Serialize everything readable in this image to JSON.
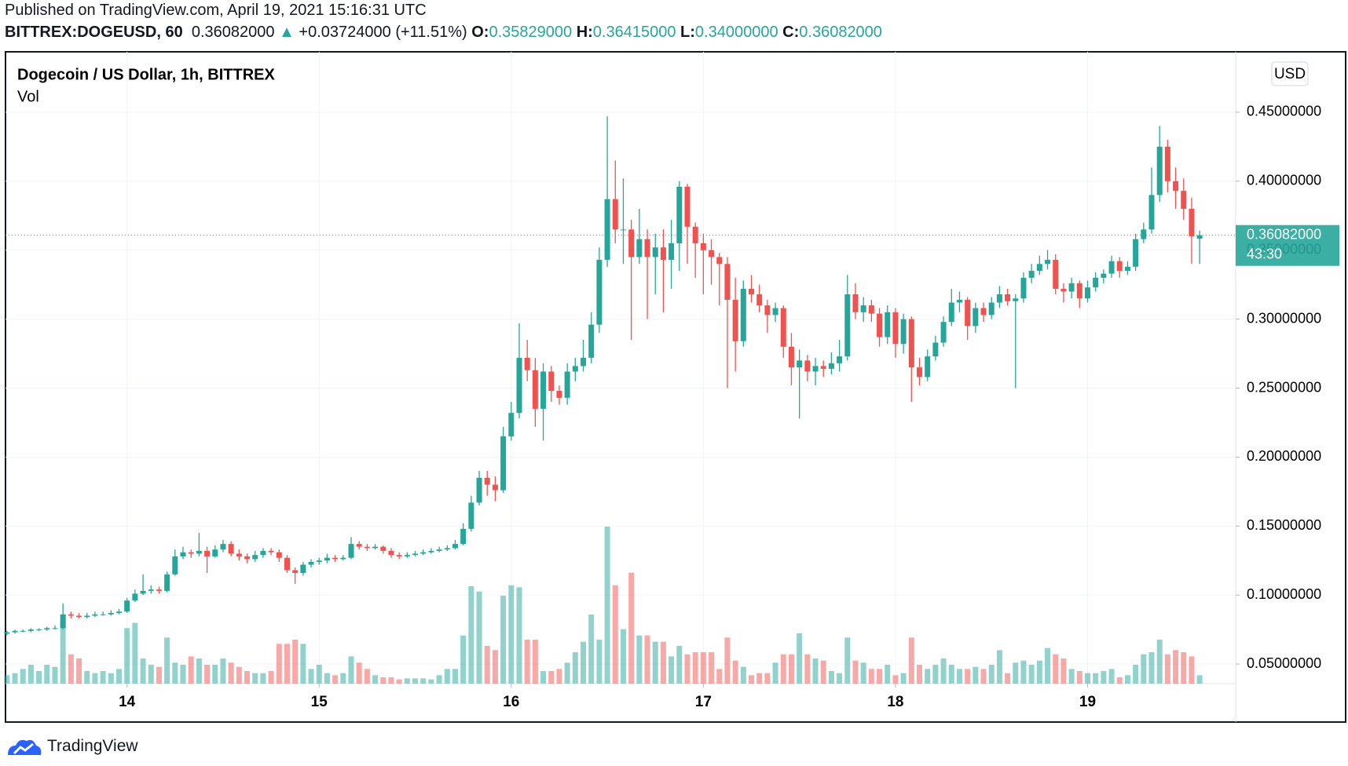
{
  "header": {
    "published": "Published on TradingView.com, April 19, 2021 15:16:31 UTC",
    "symbol": "BITTREX:DOGEUSD, 60",
    "last": "0.36082000",
    "change": "+0.03724000 (+11.51%)",
    "ohlc": [
      {
        "key": "O:",
        "value": "0.35829000"
      },
      {
        "key": "H:",
        "value": "0.36415000"
      },
      {
        "key": "L:",
        "value": "0.34000000"
      },
      {
        "key": "C:",
        "value": "0.36082000"
      }
    ]
  },
  "chart_data": {
    "type": "candlestick",
    "title": "Dogecoin / US Dollar, 1h, BITTREX",
    "indicator": "Vol",
    "currency": "USD",
    "last_price_label": "0.36082000",
    "countdown": "43:30",
    "up_color": "#26a69a",
    "down_color": "#ef5350",
    "grid": true,
    "ylim": [
      0.0358,
      0.4938
    ],
    "yticks": [
      {
        "value": 0.05,
        "label": "0.05000000"
      },
      {
        "value": 0.1,
        "label": "0.10000000"
      },
      {
        "value": 0.15,
        "label": "0.15000000"
      },
      {
        "value": 0.2,
        "label": "0.20000000"
      },
      {
        "value": 0.25,
        "label": "0.25000000"
      },
      {
        "value": 0.3,
        "label": "0.30000000"
      },
      {
        "value": 0.35,
        "label": "0.35000000"
      },
      {
        "value": 0.4,
        "label": "0.40000000"
      },
      {
        "value": 0.45,
        "label": "0.45000000"
      }
    ],
    "xlim": [
      -0.2,
      153.5
    ],
    "xticks": [
      {
        "value": 15,
        "label": "14"
      },
      {
        "value": 39,
        "label": "15"
      },
      {
        "value": 63,
        "label": "16"
      },
      {
        "value": 87,
        "label": "17"
      },
      {
        "value": 111,
        "label": "18"
      },
      {
        "value": 135,
        "label": "19"
      }
    ],
    "ohlc": [
      [
        0.072,
        0.074,
        0.071,
        0.073
      ],
      [
        0.073,
        0.075,
        0.072,
        0.074
      ],
      [
        0.074,
        0.075,
        0.073,
        0.074
      ],
      [
        0.074,
        0.076,
        0.073,
        0.075
      ],
      [
        0.075,
        0.076,
        0.074,
        0.075
      ],
      [
        0.075,
        0.077,
        0.074,
        0.076
      ],
      [
        0.076,
        0.078,
        0.075,
        0.076
      ],
      [
        0.076,
        0.094,
        0.075,
        0.086
      ],
      [
        0.086,
        0.088,
        0.083,
        0.085
      ],
      [
        0.085,
        0.087,
        0.083,
        0.084
      ],
      [
        0.084,
        0.087,
        0.083,
        0.085
      ],
      [
        0.085,
        0.088,
        0.084,
        0.086
      ],
      [
        0.086,
        0.088,
        0.085,
        0.086
      ],
      [
        0.086,
        0.089,
        0.085,
        0.087
      ],
      [
        0.087,
        0.09,
        0.086,
        0.088
      ],
      [
        0.088,
        0.098,
        0.087,
        0.096
      ],
      [
        0.096,
        0.104,
        0.095,
        0.101
      ],
      [
        0.101,
        0.115,
        0.1,
        0.103
      ],
      [
        0.103,
        0.107,
        0.101,
        0.104
      ],
      [
        0.104,
        0.106,
        0.101,
        0.103
      ],
      [
        0.103,
        0.117,
        0.102,
        0.115
      ],
      [
        0.115,
        0.133,
        0.114,
        0.128
      ],
      [
        0.128,
        0.135,
        0.126,
        0.131
      ],
      [
        0.131,
        0.133,
        0.127,
        0.13
      ],
      [
        0.13,
        0.145,
        0.128,
        0.132
      ],
      [
        0.132,
        0.135,
        0.116,
        0.128
      ],
      [
        0.128,
        0.136,
        0.127,
        0.133
      ],
      [
        0.133,
        0.14,
        0.131,
        0.137
      ],
      [
        0.137,
        0.139,
        0.128,
        0.13
      ],
      [
        0.13,
        0.133,
        0.125,
        0.128
      ],
      [
        0.128,
        0.13,
        0.123,
        0.126
      ],
      [
        0.126,
        0.132,
        0.124,
        0.129
      ],
      [
        0.129,
        0.134,
        0.127,
        0.132
      ],
      [
        0.132,
        0.134,
        0.129,
        0.131
      ],
      [
        0.131,
        0.133,
        0.124,
        0.127
      ],
      [
        0.127,
        0.129,
        0.116,
        0.118
      ],
      [
        0.118,
        0.12,
        0.108,
        0.116
      ],
      [
        0.116,
        0.124,
        0.114,
        0.122
      ],
      [
        0.122,
        0.126,
        0.12,
        0.124
      ],
      [
        0.124,
        0.127,
        0.122,
        0.125
      ],
      [
        0.125,
        0.13,
        0.123,
        0.127
      ],
      [
        0.127,
        0.129,
        0.124,
        0.126
      ],
      [
        0.126,
        0.129,
        0.125,
        0.127
      ],
      [
        0.127,
        0.142,
        0.126,
        0.137
      ],
      [
        0.137,
        0.139,
        0.133,
        0.135
      ],
      [
        0.135,
        0.137,
        0.132,
        0.134
      ],
      [
        0.134,
        0.137,
        0.133,
        0.135
      ],
      [
        0.135,
        0.136,
        0.13,
        0.132
      ],
      [
        0.132,
        0.134,
        0.127,
        0.129
      ],
      [
        0.129,
        0.131,
        0.126,
        0.128
      ],
      [
        0.128,
        0.131,
        0.127,
        0.129
      ],
      [
        0.129,
        0.132,
        0.128,
        0.13
      ],
      [
        0.13,
        0.133,
        0.129,
        0.131
      ],
      [
        0.131,
        0.134,
        0.13,
        0.132
      ],
      [
        0.132,
        0.135,
        0.131,
        0.133
      ],
      [
        0.133,
        0.136,
        0.132,
        0.134
      ],
      [
        0.134,
        0.14,
        0.133,
        0.137
      ],
      [
        0.137,
        0.152,
        0.136,
        0.148
      ],
      [
        0.148,
        0.172,
        0.146,
        0.167
      ],
      [
        0.167,
        0.19,
        0.165,
        0.185
      ],
      [
        0.185,
        0.19,
        0.172,
        0.18
      ],
      [
        0.18,
        0.186,
        0.168,
        0.176
      ],
      [
        0.176,
        0.222,
        0.174,
        0.215
      ],
      [
        0.215,
        0.24,
        0.212,
        0.232
      ],
      [
        0.232,
        0.297,
        0.228,
        0.272
      ],
      [
        0.272,
        0.285,
        0.255,
        0.263
      ],
      [
        0.263,
        0.272,
        0.222,
        0.235
      ],
      [
        0.235,
        0.268,
        0.212,
        0.262
      ],
      [
        0.262,
        0.266,
        0.24,
        0.248
      ],
      [
        0.248,
        0.252,
        0.238,
        0.243
      ],
      [
        0.243,
        0.268,
        0.238,
        0.262
      ],
      [
        0.262,
        0.272,
        0.255,
        0.266
      ],
      [
        0.266,
        0.285,
        0.262,
        0.272
      ],
      [
        0.272,
        0.305,
        0.268,
        0.296
      ],
      [
        0.296,
        0.352,
        0.29,
        0.343
      ],
      [
        0.343,
        0.447,
        0.338,
        0.387
      ],
      [
        0.387,
        0.415,
        0.355,
        0.365
      ],
      [
        0.365,
        0.402,
        0.34,
        0.365
      ],
      [
        0.365,
        0.372,
        0.285,
        0.345
      ],
      [
        0.345,
        0.38,
        0.34,
        0.358
      ],
      [
        0.358,
        0.365,
        0.3,
        0.345
      ],
      [
        0.345,
        0.362,
        0.318,
        0.352
      ],
      [
        0.352,
        0.365,
        0.305,
        0.343
      ],
      [
        0.343,
        0.372,
        0.322,
        0.355
      ],
      [
        0.355,
        0.4,
        0.335,
        0.396
      ],
      [
        0.396,
        0.398,
        0.34,
        0.367
      ],
      [
        0.367,
        0.37,
        0.33,
        0.355
      ],
      [
        0.355,
        0.362,
        0.318,
        0.35
      ],
      [
        0.35,
        0.358,
        0.325,
        0.345
      ],
      [
        0.345,
        0.348,
        0.31,
        0.34
      ],
      [
        0.34,
        0.345,
        0.25,
        0.314
      ],
      [
        0.314,
        0.33,
        0.262,
        0.284
      ],
      [
        0.284,
        0.328,
        0.28,
        0.322
      ],
      [
        0.322,
        0.332,
        0.312,
        0.318
      ],
      [
        0.318,
        0.325,
        0.305,
        0.31
      ],
      [
        0.31,
        0.314,
        0.29,
        0.303
      ],
      [
        0.303,
        0.312,
        0.298,
        0.308
      ],
      [
        0.308,
        0.31,
        0.272,
        0.28
      ],
      [
        0.28,
        0.29,
        0.252,
        0.265
      ],
      [
        0.265,
        0.278,
        0.228,
        0.27
      ],
      [
        0.27,
        0.274,
        0.255,
        0.262
      ],
      [
        0.262,
        0.272,
        0.252,
        0.266
      ],
      [
        0.266,
        0.27,
        0.258,
        0.264
      ],
      [
        0.264,
        0.276,
        0.26,
        0.268
      ],
      [
        0.268,
        0.285,
        0.262,
        0.273
      ],
      [
        0.273,
        0.332,
        0.27,
        0.318
      ],
      [
        0.318,
        0.326,
        0.3,
        0.305
      ],
      [
        0.305,
        0.316,
        0.298,
        0.31
      ],
      [
        0.31,
        0.314,
        0.298,
        0.304
      ],
      [
        0.304,
        0.308,
        0.28,
        0.287
      ],
      [
        0.287,
        0.31,
        0.282,
        0.305
      ],
      [
        0.305,
        0.308,
        0.272,
        0.282
      ],
      [
        0.282,
        0.304,
        0.275,
        0.3
      ],
      [
        0.3,
        0.302,
        0.24,
        0.265
      ],
      [
        0.265,
        0.272,
        0.252,
        0.258
      ],
      [
        0.258,
        0.278,
        0.255,
        0.273
      ],
      [
        0.273,
        0.288,
        0.27,
        0.283
      ],
      [
        0.283,
        0.302,
        0.28,
        0.298
      ],
      [
        0.298,
        0.322,
        0.295,
        0.312
      ],
      [
        0.312,
        0.32,
        0.305,
        0.314
      ],
      [
        0.314,
        0.316,
        0.285,
        0.295
      ],
      [
        0.295,
        0.312,
        0.29,
        0.308
      ],
      [
        0.308,
        0.312,
        0.298,
        0.303
      ],
      [
        0.303,
        0.316,
        0.3,
        0.312
      ],
      [
        0.312,
        0.324,
        0.308,
        0.318
      ],
      [
        0.318,
        0.322,
        0.31,
        0.313
      ],
      [
        0.313,
        0.318,
        0.25,
        0.315
      ],
      [
        0.315,
        0.334,
        0.312,
        0.33
      ],
      [
        0.33,
        0.34,
        0.326,
        0.335
      ],
      [
        0.335,
        0.346,
        0.332,
        0.34
      ],
      [
        0.34,
        0.35,
        0.336,
        0.343
      ],
      [
        0.343,
        0.347,
        0.318,
        0.322
      ],
      [
        0.322,
        0.326,
        0.312,
        0.32
      ],
      [
        0.32,
        0.33,
        0.315,
        0.326
      ],
      [
        0.326,
        0.328,
        0.308,
        0.315
      ],
      [
        0.315,
        0.328,
        0.312,
        0.323
      ],
      [
        0.323,
        0.334,
        0.32,
        0.33
      ],
      [
        0.33,
        0.336,
        0.326,
        0.333
      ],
      [
        0.333,
        0.346,
        0.33,
        0.342
      ],
      [
        0.342,
        0.345,
        0.33,
        0.335
      ],
      [
        0.335,
        0.342,
        0.332,
        0.338
      ],
      [
        0.338,
        0.362,
        0.335,
        0.358
      ],
      [
        0.358,
        0.37,
        0.355,
        0.365
      ],
      [
        0.365,
        0.41,
        0.362,
        0.39
      ],
      [
        0.39,
        0.44,
        0.385,
        0.425
      ],
      [
        0.425,
        0.43,
        0.392,
        0.4
      ],
      [
        0.4,
        0.41,
        0.38,
        0.393
      ],
      [
        0.393,
        0.402,
        0.372,
        0.38
      ],
      [
        0.38,
        0.388,
        0.34,
        0.36
      ],
      [
        0.35829,
        0.36415,
        0.34,
        0.36082
      ]
    ],
    "volume": [
      8,
      10,
      14,
      18,
      12,
      18,
      16,
      60,
      28,
      24,
      12,
      10,
      12,
      10,
      14,
      53,
      58,
      24,
      18,
      16,
      44,
      20,
      18,
      26,
      24,
      18,
      18,
      24,
      20,
      16,
      12,
      10,
      10,
      12,
      38,
      38,
      42,
      38,
      14,
      18,
      10,
      8,
      10,
      26,
      20,
      14,
      8,
      6,
      6,
      4,
      5,
      5,
      5,
      4,
      8,
      14,
      14,
      46,
      93,
      88,
      36,
      32,
      84,
      94,
      92,
      42,
      42,
      12,
      12,
      14,
      20,
      30,
      40,
      66,
      42,
      150,
      94,
      52,
      106,
      46,
      46,
      40,
      40,
      26,
      36,
      28,
      30,
      30,
      30,
      14,
      44,
      22,
      16,
      8,
      10,
      10,
      20,
      28,
      28,
      48,
      28,
      24,
      22,
      12,
      10,
      44,
      22,
      20,
      14,
      14,
      18,
      8,
      10,
      44,
      18,
      14,
      18,
      24,
      18,
      14,
      14,
      16,
      14,
      18,
      32,
      10,
      20,
      22,
      18,
      22,
      34,
      28,
      24,
      14,
      12,
      10,
      10,
      12,
      14,
      6,
      8,
      18,
      28,
      30,
      42,
      28,
      32,
      30,
      26,
      8
    ]
  },
  "footer": {
    "brand": "TradingView"
  }
}
